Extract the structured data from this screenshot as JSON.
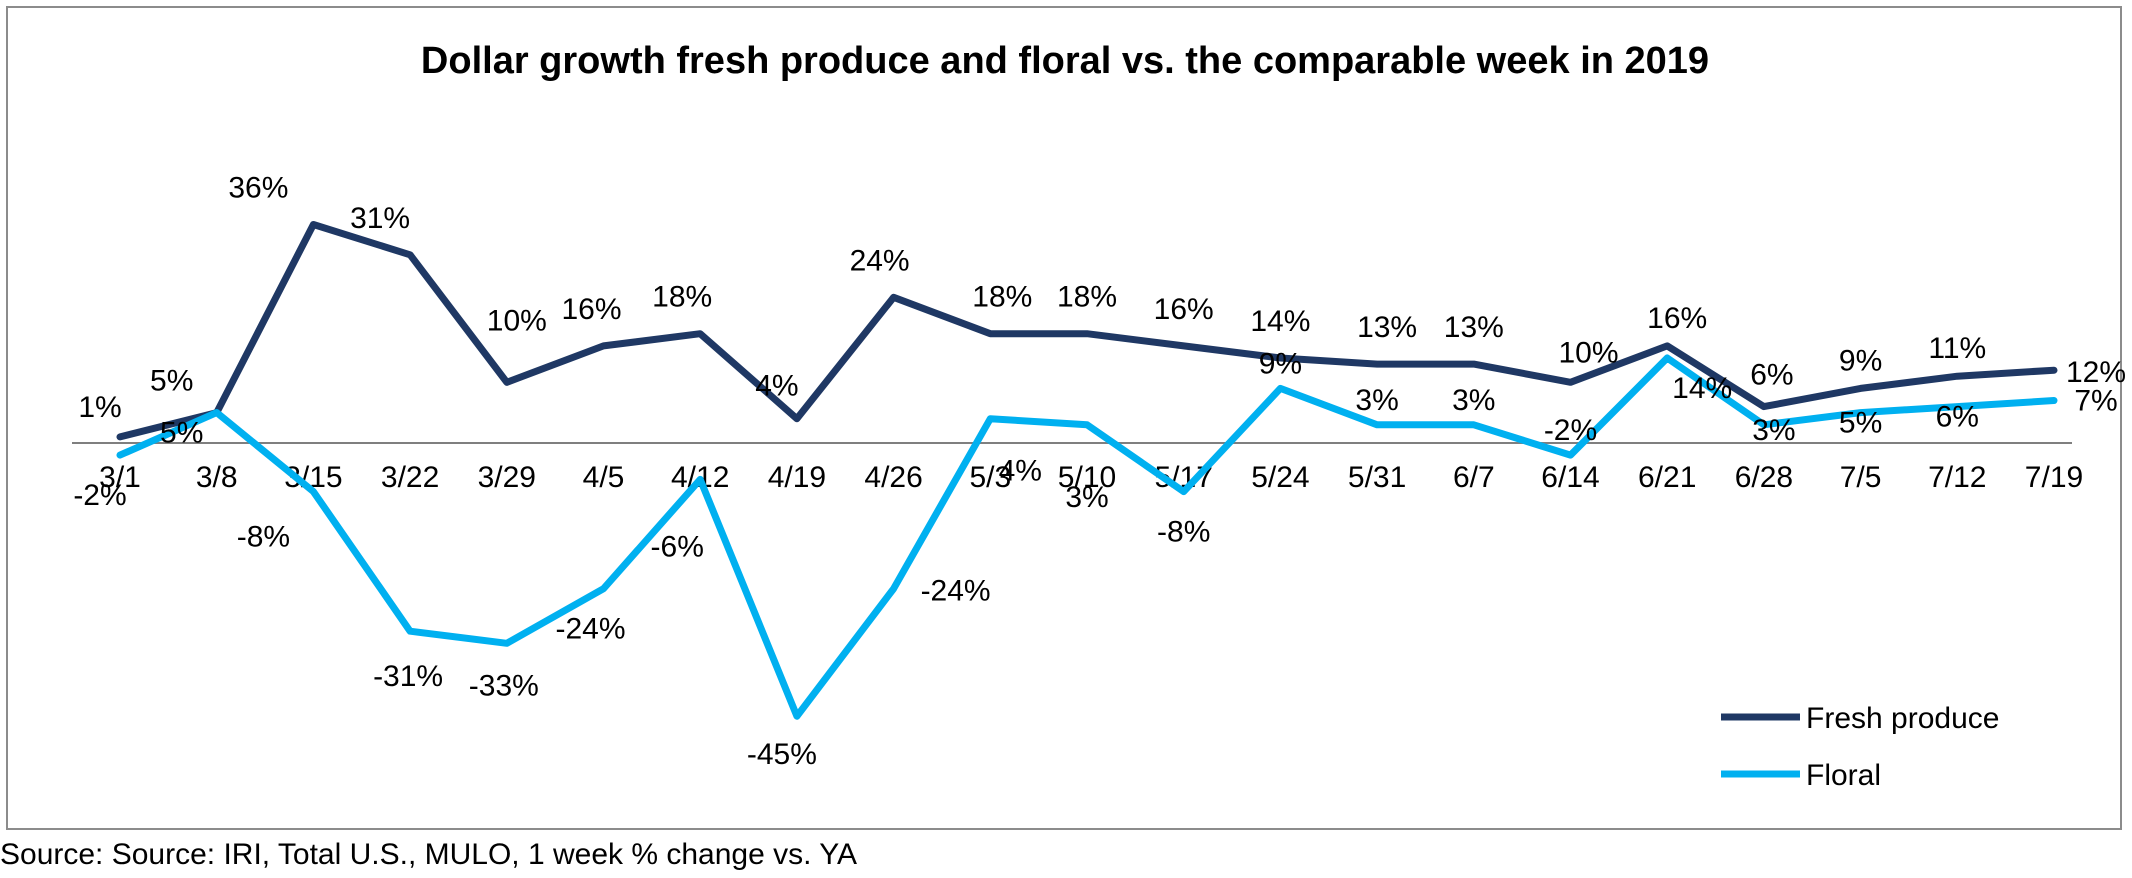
{
  "chart_data": {
    "type": "line",
    "title": "Dollar growth fresh produce and floral vs. the comparable week in 2019",
    "xlabel": "",
    "ylabel": "",
    "categories": [
      "3/1",
      "3/8",
      "3/15",
      "3/22",
      "3/29",
      "4/5",
      "4/12",
      "4/19",
      "4/26",
      "5/3",
      "5/10",
      "5/17",
      "5/24",
      "5/31",
      "6/7",
      "6/14",
      "6/21",
      "6/28",
      "7/5",
      "7/12",
      "7/19"
    ],
    "series": [
      {
        "name": "Fresh produce",
        "color": "#1f3864",
        "values": [
          1,
          5,
          36,
          31,
          10,
          16,
          18,
          4,
          24,
          18,
          18,
          16,
          14,
          13,
          13,
          10,
          16,
          6,
          9,
          11,
          12
        ],
        "labels": [
          "1%",
          "5%",
          "36%",
          "31%",
          "10%",
          "16%",
          "18%",
          "4%",
          "24%",
          "18%",
          "18%",
          "16%",
          "14%",
          "13%",
          "13%",
          "10%",
          "16%",
          "6%",
          "9%",
          "11%",
          "12%"
        ]
      },
      {
        "name": "Floral",
        "color": "#00b0f0",
        "values": [
          -2,
          5,
          -8,
          -31,
          -33,
          -24,
          -6,
          -45,
          -24,
          4,
          3,
          -8,
          9,
          3,
          3,
          -2,
          14,
          3,
          5,
          6,
          7
        ],
        "labels": [
          "-2%",
          "5%",
          "-8%",
          "-31%",
          "-33%",
          "-24%",
          "-6%",
          "-45%",
          "-24%",
          "4%",
          "3%",
          "-8%",
          "9%",
          "3%",
          "3%",
          "-2%",
          "14%",
          "3%",
          "5%",
          "6%",
          "7%"
        ]
      }
    ],
    "grid": false,
    "legend_position": "bottom-right",
    "zero_line": true
  },
  "source_note": "Source: Source: IRI, Total U.S., MULO, 1 week % change vs. YA"
}
